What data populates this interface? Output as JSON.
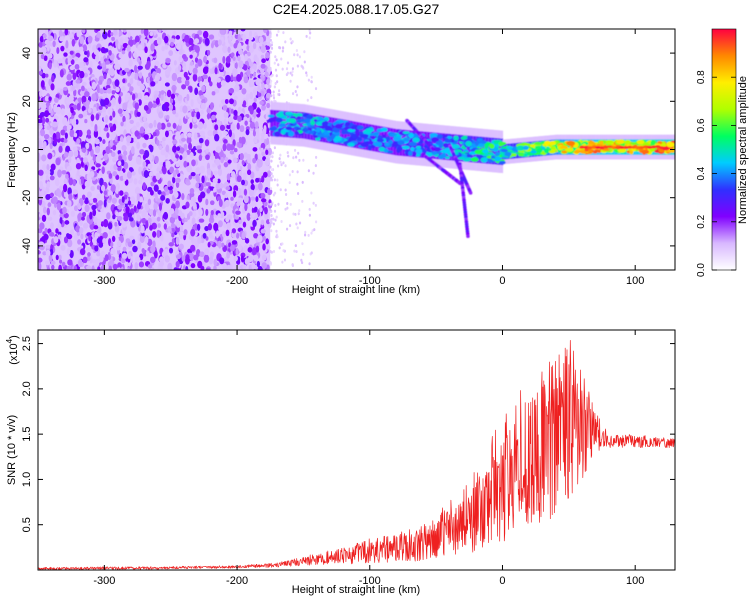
{
  "figure": {
    "title": "C2E4.2025.088.17.05.G27"
  },
  "chart_data": [
    {
      "type": "heatmap",
      "title": "C2E4.2025.088.17.05.G27",
      "xlabel": "Height of straight line (km)",
      "ylabel": "Frequency (Hz)",
      "xlim": [
        -350,
        130
      ],
      "ylim": [
        -50,
        50
      ],
      "x_ticks": [
        -300,
        -200,
        -100,
        0,
        100
      ],
      "y_ticks": [
        -40,
        -20,
        0,
        20,
        40
      ],
      "grid": false,
      "colorbar": {
        "label": "Normalized spectral amplitude",
        "range": [
          0,
          1
        ],
        "ticks": [
          "0.0",
          "0.2",
          "0.4",
          "0.6",
          "0.8"
        ],
        "colormap": [
          "#ffffff",
          "#d8b8ff",
          "#8000ff",
          "#3030ff",
          "#00ccff",
          "#00ff60",
          "#b0ff00",
          "#ffee00",
          "#ff8800",
          "#ff0040"
        ]
      },
      "regions": [
        {
          "description": "noise",
          "x_range": [
            -350,
            -175
          ],
          "y_range": [
            -50,
            50
          ],
          "amplitude": [
            0.05,
            0.25
          ]
        },
        {
          "description": "transition",
          "x_range": [
            -175,
            -140
          ],
          "y_range": [
            -50,
            50
          ],
          "amplitude": [
            0.0,
            0.1
          ]
        }
      ],
      "signal_ridge": {
        "x": [
          -175,
          -150,
          -120,
          -100,
          -80,
          -60,
          -40,
          -20,
          0,
          20,
          40,
          60,
          80,
          100,
          130
        ],
        "y": [
          11,
          10,
          7,
          5,
          3,
          2,
          1,
          0,
          -1,
          0,
          1,
          1,
          1,
          1,
          1
        ],
        "amplitude": [
          0.45,
          0.5,
          0.45,
          0.45,
          0.45,
          0.45,
          0.5,
          0.55,
          0.6,
          0.7,
          0.8,
          0.9,
          0.9,
          0.9,
          0.95
        ]
      }
    },
    {
      "type": "line",
      "xlabel": "Height of straight line (km)",
      "ylabel": "SNR (10 * v/v)",
      "y_multiplier_label": "(x10",
      "y_multiplier_exp": "4",
      "y_multiplier_close": ")",
      "xlim": [
        -350,
        130
      ],
      "ylim": [
        0.0,
        2.65
      ],
      "x_ticks": [
        -300,
        -200,
        -100,
        0,
        100
      ],
      "y_ticks": [
        0.5,
        1.0,
        1.5,
        2.0,
        2.5
      ],
      "y_tick_labels": [
        "0.5",
        "1.0",
        "1.5",
        "2.0",
        "2.5"
      ],
      "grid": false,
      "color": "#ee2020",
      "series": [
        {
          "envelope": {
            "x": [
              -350,
              -250,
              -200,
              -170,
              -150,
              -120,
              -100,
              -80,
              -60,
              -40,
              -20,
              0,
              20,
              40,
              50,
              60,
              70,
              80,
              100,
              130
            ],
            "y_low": [
              0.0,
              0.01,
              0.02,
              0.03,
              0.05,
              0.06,
              0.08,
              0.08,
              0.1,
              0.15,
              0.2,
              0.3,
              0.4,
              0.6,
              0.8,
              1.0,
              1.3,
              1.35,
              1.35,
              1.35
            ],
            "y_high": [
              0.03,
              0.04,
              0.05,
              0.08,
              0.15,
              0.25,
              0.35,
              0.4,
              0.5,
              0.75,
              1.15,
              1.75,
              2.1,
              2.45,
              2.6,
              2.2,
              1.75,
              1.5,
              1.5,
              1.45
            ]
          }
        }
      ]
    }
  ]
}
